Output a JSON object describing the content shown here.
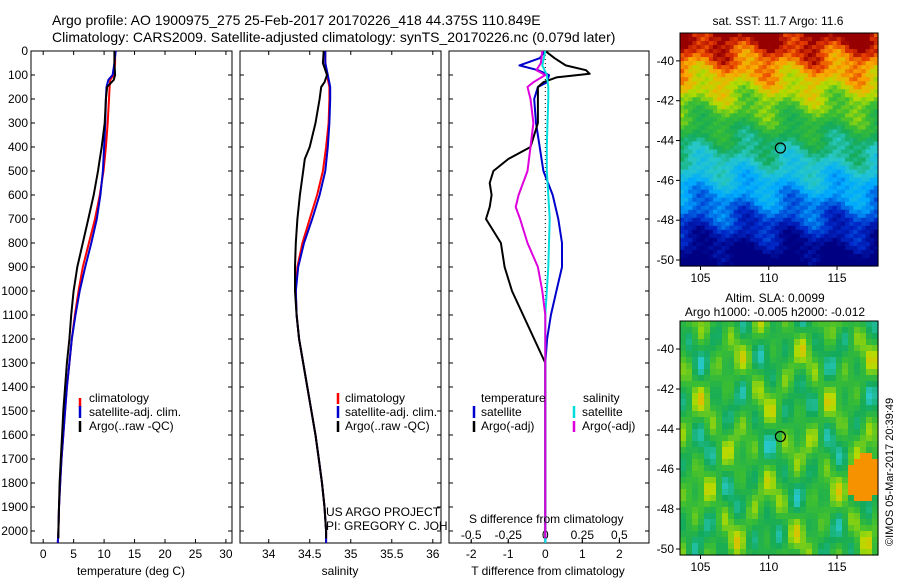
{
  "header": {
    "line1": "Argo profile: AO 1900975_275 25-Feb-2017 20170226_418 44.375S 110.849E",
    "line2": "Climatology: CARS2009. Satellite-adjusted climatology: synTS_20170226.nc (0.079d later)"
  },
  "colors": {
    "climatology": "#ff0000",
    "satellite": "#0000cc",
    "argo": "#000000",
    "satellite_s": "#00dddd",
    "argo_s": "#dd00dd"
  },
  "project_note": [
    "US ARGO PROJECT",
    "PI: GREGORY C. JOHNSON"
  ],
  "sst_panel": {
    "title": "sat. SST: 11.7 Argo: 11.6",
    "lon_ticks": [
      "105",
      "110",
      "115"
    ],
    "lat_ticks": [
      "-40",
      "-42",
      "-44",
      "-46",
      "-48",
      "-50"
    ]
  },
  "sla_panel": {
    "title1": "Altim. SLA: 0.0099",
    "title2": "Argo h1000: -0.005 h2000: -0.012",
    "lon_ticks": [
      "105",
      "110",
      "115"
    ],
    "lat_ticks": [
      "-40",
      "-42",
      "-44",
      "-46",
      "-48",
      "-50"
    ]
  },
  "side_credit": "©IMOS 05-Mar-2017 20:39:49",
  "chart_data": [
    {
      "type": "line",
      "xlabel": "temperature (deg C)",
      "ylabel": "",
      "xlim": [
        -2,
        31
      ],
      "ylim": [
        2050,
        0
      ],
      "x_ticks": [
        0,
        5,
        10,
        15,
        20,
        25,
        30
      ],
      "y_ticks": [
        0,
        100,
        200,
        300,
        400,
        500,
        600,
        700,
        800,
        900,
        1000,
        1100,
        1200,
        1300,
        1400,
        1500,
        1600,
        1700,
        1800,
        1900,
        2000
      ],
      "legend": [
        "climatology",
        "satellite-adj. clim.",
        "Argo(..raw -QC)"
      ],
      "legend_position": "lower-right",
      "series": [
        {
          "name": "climatology",
          "color": "#ff0000",
          "depth": [
            0,
            50,
            100,
            120,
            150,
            200,
            300,
            400,
            500,
            600,
            700,
            800,
            900,
            1000,
            1100,
            1200,
            1300,
            1400,
            1500,
            1600,
            1700,
            1800,
            1900,
            2000,
            2050
          ],
          "values": [
            11.8,
            11.8,
            11.6,
            11.0,
            10.9,
            10.8,
            10.6,
            10.3,
            9.9,
            9.3,
            8.5,
            7.5,
            6.5,
            5.8,
            5.2,
            4.7,
            4.3,
            3.9,
            3.6,
            3.3,
            3.0,
            2.8,
            2.6,
            2.5,
            2.4
          ]
        },
        {
          "name": "satellite-adj. clim.",
          "color": "#0000cc",
          "depth": [
            0,
            50,
            100,
            120,
            150,
            200,
            300,
            400,
            500,
            600,
            700,
            800,
            900,
            1000,
            1100,
            1200,
            1300,
            1400,
            1500,
            1600,
            1700,
            1800,
            1900,
            2000,
            2050
          ],
          "values": [
            11.9,
            11.7,
            11.4,
            10.7,
            10.4,
            10.3,
            10.2,
            10.0,
            9.8,
            9.4,
            8.8,
            7.9,
            6.9,
            6.0,
            5.3,
            4.7,
            4.3,
            3.9,
            3.6,
            3.3,
            3.0,
            2.8,
            2.6,
            2.5,
            2.4
          ]
        },
        {
          "name": "Argo(..raw -QC)",
          "color": "#000000",
          "depth": [
            0,
            50,
            100,
            120,
            150,
            200,
            300,
            400,
            450,
            500,
            600,
            700,
            800,
            900,
            1000,
            1100,
            1200,
            1300,
            1400,
            1500,
            1600,
            1700,
            1800,
            1900,
            2000,
            2030
          ],
          "values": [
            11.7,
            11.7,
            11.8,
            11.6,
            10.5,
            10.3,
            10.1,
            9.6,
            9.3,
            9.0,
            8.3,
            7.4,
            6.5,
            5.6,
            5.0,
            4.6,
            4.3,
            3.9,
            3.6,
            3.3,
            3.1,
            2.9,
            2.7,
            2.6,
            2.5,
            2.5
          ]
        }
      ]
    },
    {
      "type": "line",
      "xlabel": "salinity",
      "ylabel": "",
      "xlim": [
        33.65,
        36.1
      ],
      "ylim": [
        2050,
        0
      ],
      "x_ticks": [
        34,
        34.5,
        35,
        35.5,
        36
      ],
      "legend": [
        "climatology",
        "satellite-adj. clim.",
        "Argo(..raw -QC)"
      ],
      "legend_position": "lower-right",
      "series": [
        {
          "name": "climatology",
          "color": "#ff0000",
          "depth": [
            0,
            50,
            100,
            150,
            200,
            300,
            400,
            500,
            600,
            700,
            800,
            900,
            1000,
            1100,
            1200,
            1300,
            1400,
            1500,
            1600,
            1700,
            1800,
            1900,
            2000,
            2050
          ],
          "values": [
            34.69,
            34.69,
            34.71,
            34.74,
            34.74,
            34.73,
            34.7,
            34.66,
            34.59,
            34.5,
            34.41,
            34.35,
            34.33,
            34.34,
            34.37,
            34.42,
            34.47,
            34.52,
            34.57,
            34.61,
            34.65,
            34.68,
            34.7,
            34.7
          ]
        },
        {
          "name": "satellite-adj. clim.",
          "color": "#0000cc",
          "depth": [
            0,
            50,
            100,
            150,
            200,
            300,
            400,
            500,
            600,
            700,
            800,
            900,
            1000,
            1100,
            1200,
            1300,
            1400,
            1500,
            1600,
            1700,
            1800,
            1900,
            2000,
            2050
          ],
          "values": [
            34.69,
            34.69,
            34.72,
            34.75,
            34.75,
            34.74,
            34.72,
            34.69,
            34.62,
            34.53,
            34.43,
            34.36,
            34.33,
            34.34,
            34.37,
            34.42,
            34.47,
            34.52,
            34.57,
            34.61,
            34.65,
            34.68,
            34.7,
            34.7
          ]
        },
        {
          "name": "Argo(..raw -QC)",
          "color": "#000000",
          "depth": [
            0,
            50,
            100,
            130,
            150,
            200,
            300,
            400,
            450,
            500,
            600,
            700,
            800,
            900,
            1000,
            1100,
            1200,
            1300,
            1400,
            1500,
            1600,
            1700,
            1800,
            1900,
            2000,
            2030
          ],
          "values": [
            34.67,
            34.66,
            34.71,
            34.68,
            34.64,
            34.62,
            34.57,
            34.5,
            34.44,
            34.42,
            34.38,
            34.35,
            34.33,
            34.32,
            34.32,
            34.34,
            34.37,
            34.42,
            34.47,
            34.52,
            34.57,
            34.61,
            34.65,
            34.68,
            34.7,
            34.7
          ]
        }
      ]
    },
    {
      "type": "line",
      "xlabel": "T difference from climatology",
      "x2label": "S difference from climatology",
      "xlim": [
        -2.6,
        2.8
      ],
      "x2lim": [
        -0.65,
        0.7
      ],
      "ylim": [
        2050,
        0
      ],
      "x_ticks": [
        -2,
        -1,
        0,
        1,
        2
      ],
      "x2_ticks": [
        -0.5,
        -0.25,
        0,
        0.25,
        0.5
      ],
      "legend": {
        "temperature": "temperature",
        "salinity": "salinity",
        "items": [
          "satellite",
          "Argo(-adj)",
          "satellite",
          "Argo(-adj)"
        ]
      },
      "legend_position": "lower",
      "series": [
        {
          "name": "satellite",
          "group": "temperature",
          "color": "#0000cc",
          "depth": [
            0,
            30,
            60,
            80,
            100,
            130,
            150,
            200,
            300,
            400,
            500,
            600,
            700,
            800,
            900,
            1000,
            1100,
            1200,
            1300,
            1400,
            1500,
            1700,
            1900,
            2000,
            2050
          ],
          "values": [
            0.0,
            -0.15,
            -0.7,
            -0.2,
            0.1,
            0.05,
            -0.2,
            -0.3,
            -0.25,
            -0.15,
            -0.05,
            0.2,
            0.35,
            0.45,
            0.45,
            0.3,
            0.15,
            0.05,
            0.0,
            0.0,
            0.0,
            0.0,
            0.0,
            0.0,
            0.0
          ]
        },
        {
          "name": "Argo(-adj)",
          "group": "temperature",
          "color": "#000000",
          "depth": [
            0,
            30,
            60,
            80,
            95,
            110,
            130,
            150,
            200,
            300,
            400,
            450,
            500,
            550,
            600,
            650,
            700,
            800,
            900,
            1000,
            1100,
            1200,
            1300,
            1400,
            1500,
            1700,
            1900,
            2000,
            2030
          ],
          "values": [
            0.0,
            0.25,
            0.55,
            1.1,
            1.2,
            0.3,
            -0.05,
            -0.2,
            -0.2,
            -0.2,
            -0.4,
            -1.0,
            -1.4,
            -1.5,
            -1.45,
            -1.5,
            -1.6,
            -1.2,
            -1.1,
            -0.9,
            -0.6,
            -0.3,
            0.0,
            0.0,
            0.0,
            0.0,
            0.0,
            0.0,
            0.0
          ]
        },
        {
          "name": "satellite",
          "group": "salinity",
          "color": "#00dddd",
          "depth": [
            0,
            60,
            100,
            150,
            200,
            300,
            400,
            500,
            600,
            700,
            800,
            900,
            1000,
            1100,
            1200,
            1300,
            1500,
            1700,
            1900,
            2000,
            2050
          ],
          "values": [
            0.0,
            -0.02,
            0.01,
            0.02,
            0.02,
            0.015,
            0.01,
            0.01,
            0.02,
            0.03,
            0.025,
            0.02,
            0.01,
            0.0,
            0.0,
            0.0,
            0.0,
            0.0,
            0.0,
            0.0,
            0.0
          ]
        },
        {
          "name": "Argo(-adj)",
          "group": "salinity",
          "color": "#dd00dd",
          "depth": [
            0,
            50,
            80,
            100,
            130,
            150,
            200,
            300,
            400,
            500,
            600,
            650,
            700,
            800,
            900,
            1000,
            1100,
            1200,
            1300,
            1500,
            1700,
            1900,
            2000,
            2030
          ],
          "values": [
            -0.02,
            -0.03,
            -0.06,
            0.0,
            -0.08,
            -0.12,
            -0.1,
            -0.08,
            -0.1,
            -0.12,
            -0.18,
            -0.2,
            -0.17,
            -0.12,
            -0.05,
            -0.02,
            0.0,
            0.0,
            0.0,
            0.0,
            0.0,
            0.0,
            0.0,
            0.0
          ]
        }
      ]
    },
    {
      "type": "heatmap",
      "title": "sat. SST: 11.7 Argo: 11.6",
      "xlim": [
        103.5,
        118
      ],
      "ylim": [
        -50.3,
        -38.6
      ],
      "x_ticks": [
        105,
        110,
        115
      ],
      "y_ticks": [
        -40,
        -42,
        -44,
        -46,
        -48,
        -50
      ],
      "marker": {
        "lon": 110.849,
        "lat": -44.375
      }
    },
    {
      "type": "heatmap",
      "title": "Altim. SLA: 0.0099",
      "subtitle": "Argo h1000: -0.005 h2000: -0.012",
      "xlim": [
        103.5,
        118
      ],
      "ylim": [
        -50.3,
        -38.6
      ],
      "x_ticks": [
        105,
        110,
        115
      ],
      "y_ticks": [
        -40,
        -42,
        -44,
        -46,
        -48,
        -50
      ],
      "marker": {
        "lon": 110.849,
        "lat": -44.375
      }
    }
  ]
}
